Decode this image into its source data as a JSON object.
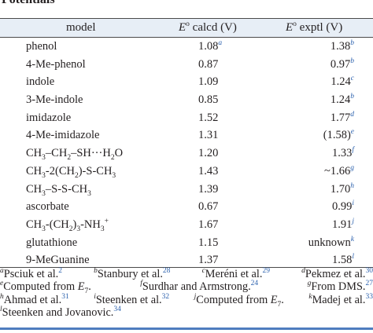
{
  "caption": "Potentials",
  "header": {
    "model": "model",
    "calcd": "calcd (V)",
    "exptl": "exptl (V)"
  },
  "rows": [
    {
      "model": "phenol",
      "calcd": "1.08",
      "calcd_note": "a",
      "exptl": "1.38",
      "exptl_note": "b"
    },
    {
      "model": "4-Me-phenol",
      "calcd": "0.87",
      "exptl": "0.97",
      "exptl_note": "b"
    },
    {
      "model": "indole",
      "calcd": "1.09",
      "exptl": "1.24",
      "exptl_note": "c"
    },
    {
      "model": "3-Me-indole",
      "calcd": "0.85",
      "exptl": "1.24",
      "exptl_note": "b"
    },
    {
      "model": "imidazole",
      "calcd": "1.52",
      "exptl": "1.77",
      "exptl_note": "d"
    },
    {
      "model": "4-Me-imidazole",
      "calcd": "1.31",
      "exptl": "(1.58)",
      "exptl_note": "e"
    },
    {
      "model": "CH3–CH2–SH···H2O",
      "calcd": "1.20",
      "exptl": "1.33",
      "exptl_note": "f"
    },
    {
      "model": "CH3-2(CH2)-S-CH3",
      "calcd": "1.43",
      "exptl": "~1.66",
      "exptl_note": "g"
    },
    {
      "model": "CH3–S-S-CH3",
      "calcd": "1.39",
      "exptl": "1.70",
      "exptl_note": "h"
    },
    {
      "model": "ascorbate",
      "calcd": "0.67",
      "exptl": "0.99",
      "exptl_note": "i"
    },
    {
      "model": "CH3-(CH2)3-NH3+",
      "calcd": "1.67",
      "exptl": "1.91",
      "exptl_note": "j"
    },
    {
      "model": "glutathione",
      "calcd": "1.15",
      "exptl": "unknown",
      "exptl_note": "k"
    },
    {
      "model": "9-MeGuanine",
      "calcd": "1.37",
      "exptl": "1.58",
      "exptl_note": "l"
    }
  ],
  "footnotes": [
    {
      "mark": "a",
      "text": "Psciuk et al.",
      "ref": "2"
    },
    {
      "mark": "b",
      "text": "Stanbury et al.",
      "ref": "28"
    },
    {
      "mark": "c",
      "text": "Meréni et al.",
      "ref": "29"
    },
    {
      "mark": "d",
      "text": "Pekmez et al.",
      "ref": "30"
    },
    {
      "mark": "e",
      "text": "Computed from E7."
    },
    {
      "mark": "f",
      "text": "Surdhar and Armstrong.",
      "ref": "24"
    },
    {
      "mark": "g",
      "text": "From DMS.",
      "ref": "27"
    },
    {
      "mark": "h",
      "text": "Ahmad et al.",
      "ref": "31"
    },
    {
      "mark": "i",
      "text": "Steenken et al.",
      "ref": "32"
    },
    {
      "mark": "j",
      "text": "Computed from E7."
    },
    {
      "mark": "k",
      "text": "Madej et al.",
      "ref": "33"
    },
    {
      "mark": "l",
      "text": "Steenken and Jovanovic.",
      "ref": "34"
    }
  ]
}
